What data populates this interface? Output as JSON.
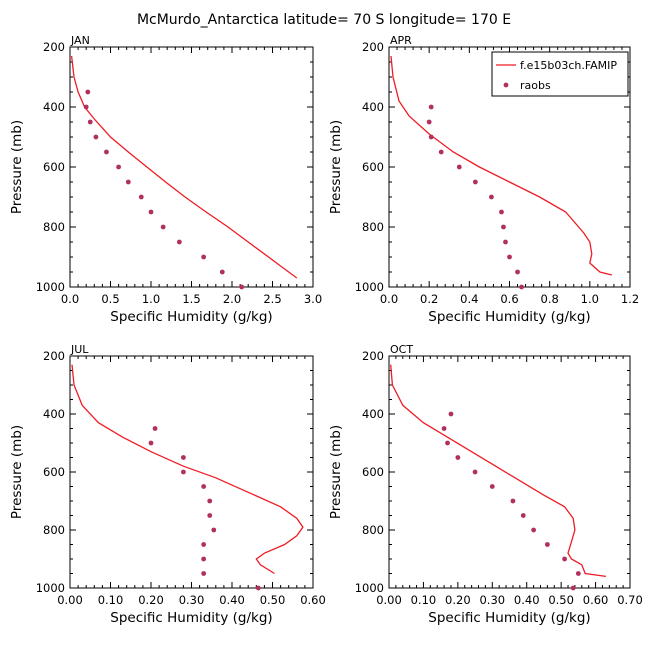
{
  "title": "McMurdo_Antarctica  latitude= 70 S longitude= 170 E",
  "legend": {
    "entries": [
      "f.e15b03ch.FAMIP",
      "raobs"
    ],
    "colors": {
      "model": "#ee1c25",
      "obs": "#b03060"
    }
  },
  "chart_data": [
    {
      "type": "line",
      "panel": "JAN",
      "xlabel": "Specific Humidity (g/kg)",
      "ylabel": "Pressure (mb)",
      "xlim": [
        0,
        3
      ],
      "ylim": [
        200,
        1000
      ],
      "y_inverted": true,
      "xticks": [
        0,
        0.5,
        1,
        1.5,
        2,
        2.5,
        3
      ],
      "xtick_labels": [
        "0.0",
        "0.5",
        "1.0",
        "1.5",
        "2.0",
        "2.5",
        "3.0"
      ],
      "yticks": [
        200,
        400,
        600,
        800,
        1000
      ],
      "series": [
        {
          "name": "f.e15b03ch.FAMIP",
          "kind": "line",
          "points": [
            [
              0.02,
              230
            ],
            [
              0.05,
              300
            ],
            [
              0.1,
              350
            ],
            [
              0.18,
              400
            ],
            [
              0.3,
              440
            ],
            [
              0.5,
              500
            ],
            [
              0.72,
              550
            ],
            [
              0.95,
              600
            ],
            [
              1.18,
              650
            ],
            [
              1.42,
              700
            ],
            [
              1.68,
              750
            ],
            [
              1.95,
              800
            ],
            [
              2.2,
              850
            ],
            [
              2.45,
              900
            ],
            [
              2.65,
              940
            ],
            [
              2.8,
              970
            ]
          ]
        },
        {
          "name": "raobs",
          "kind": "scatter",
          "points": [
            [
              0.22,
              350
            ],
            [
              0.2,
              400
            ],
            [
              0.25,
              450
            ],
            [
              0.32,
              500
            ],
            [
              0.45,
              550
            ],
            [
              0.6,
              600
            ],
            [
              0.72,
              650
            ],
            [
              0.88,
              700
            ],
            [
              1.0,
              750
            ],
            [
              1.15,
              800
            ],
            [
              1.35,
              850
            ],
            [
              1.65,
              900
            ],
            [
              1.88,
              950
            ],
            [
              2.12,
              1000
            ]
          ]
        }
      ]
    },
    {
      "type": "line",
      "panel": "APR",
      "xlabel": "Specific Humidity (g/kg)",
      "ylabel": "Pressure (mb)",
      "xlim": [
        0,
        1.2
      ],
      "ylim": [
        200,
        1000
      ],
      "y_inverted": true,
      "xticks": [
        0,
        0.2,
        0.4,
        0.6,
        0.8,
        1.0,
        1.2
      ],
      "xtick_labels": [
        "0.0",
        "0.2",
        "0.4",
        "0.6",
        "0.8",
        "1.0",
        "1.2"
      ],
      "yticks": [
        200,
        400,
        600,
        800,
        1000
      ],
      "series": [
        {
          "name": "f.e15b03ch.FAMIP",
          "kind": "line",
          "points": [
            [
              0.01,
              230
            ],
            [
              0.02,
              300
            ],
            [
              0.05,
              380
            ],
            [
              0.1,
              430
            ],
            [
              0.2,
              490
            ],
            [
              0.32,
              550
            ],
            [
              0.45,
              600
            ],
            [
              0.6,
              650
            ],
            [
              0.75,
              700
            ],
            [
              0.88,
              750
            ],
            [
              0.97,
              820
            ],
            [
              1.0,
              850
            ],
            [
              1.01,
              890
            ],
            [
              1.0,
              920
            ],
            [
              1.05,
              950
            ],
            [
              1.11,
              960
            ]
          ]
        },
        {
          "name": "raobs",
          "kind": "scatter",
          "points": [
            [
              0.21,
              400
            ],
            [
              0.2,
              450
            ],
            [
              0.21,
              500
            ],
            [
              0.26,
              550
            ],
            [
              0.35,
              600
            ],
            [
              0.43,
              650
            ],
            [
              0.51,
              700
            ],
            [
              0.56,
              750
            ],
            [
              0.57,
              800
            ],
            [
              0.58,
              850
            ],
            [
              0.6,
              900
            ],
            [
              0.64,
              950
            ],
            [
              0.66,
              1000
            ]
          ]
        }
      ]
    },
    {
      "type": "line",
      "panel": "JUL",
      "xlabel": "Specific Humidity (g/kg)",
      "ylabel": "Pressure (mb)",
      "xlim": [
        0,
        0.6
      ],
      "ylim": [
        200,
        1000
      ],
      "y_inverted": true,
      "xticks": [
        0,
        0.1,
        0.2,
        0.3,
        0.4,
        0.5,
        0.6
      ],
      "xtick_labels": [
        "0.00",
        "0.10",
        "0.20",
        "0.30",
        "0.40",
        "0.50",
        "0.60"
      ],
      "yticks": [
        200,
        400,
        600,
        800,
        1000
      ],
      "series": [
        {
          "name": "f.e15b03ch.FAMIP",
          "kind": "line",
          "points": [
            [
              0.005,
              230
            ],
            [
              0.01,
              300
            ],
            [
              0.03,
              370
            ],
            [
              0.07,
              430
            ],
            [
              0.13,
              480
            ],
            [
              0.2,
              530
            ],
            [
              0.28,
              580
            ],
            [
              0.36,
              620
            ],
            [
              0.44,
              670
            ],
            [
              0.52,
              720
            ],
            [
              0.56,
              760
            ],
            [
              0.575,
              790
            ],
            [
              0.56,
              820
            ],
            [
              0.53,
              850
            ],
            [
              0.48,
              880
            ],
            [
              0.46,
              900
            ],
            [
              0.47,
              920
            ],
            [
              0.505,
              950
            ]
          ]
        },
        {
          "name": "raobs",
          "kind": "scatter",
          "points": [
            [
              0.21,
              450
            ],
            [
              0.2,
              500
            ],
            [
              0.28,
              550
            ],
            [
              0.28,
              600
            ],
            [
              0.33,
              650
            ],
            [
              0.345,
              700
            ],
            [
              0.345,
              750
            ],
            [
              0.355,
              800
            ],
            [
              0.33,
              850
            ],
            [
              0.33,
              900
            ],
            [
              0.33,
              950
            ],
            [
              0.465,
              1000
            ]
          ]
        }
      ]
    },
    {
      "type": "line",
      "panel": "OCT",
      "xlabel": "Specific Humidity (g/kg)",
      "ylabel": "Pressure (mb)",
      "xlim": [
        0,
        0.7
      ],
      "ylim": [
        200,
        1000
      ],
      "y_inverted": true,
      "xticks": [
        0,
        0.1,
        0.2,
        0.3,
        0.4,
        0.5,
        0.6,
        0.7
      ],
      "xtick_labels": [
        "0.00",
        "0.10",
        "0.20",
        "0.30",
        "0.40",
        "0.50",
        "0.60",
        "0.70"
      ],
      "yticks": [
        200,
        400,
        600,
        800,
        1000
      ],
      "series": [
        {
          "name": "f.e15b03ch.FAMIP",
          "kind": "line",
          "points": [
            [
              0.005,
              230
            ],
            [
              0.01,
              300
            ],
            [
              0.04,
              370
            ],
            [
              0.1,
              430
            ],
            [
              0.17,
              480
            ],
            [
              0.24,
              530
            ],
            [
              0.31,
              580
            ],
            [
              0.38,
              630
            ],
            [
              0.45,
              680
            ],
            [
              0.51,
              720
            ],
            [
              0.535,
              760
            ],
            [
              0.54,
              800
            ],
            [
              0.53,
              840
            ],
            [
              0.52,
              880
            ],
            [
              0.53,
              900
            ],
            [
              0.56,
              920
            ],
            [
              0.57,
              950
            ],
            [
              0.63,
              960
            ]
          ]
        },
        {
          "name": "raobs",
          "kind": "scatter",
          "points": [
            [
              0.18,
              400
            ],
            [
              0.16,
              450
            ],
            [
              0.17,
              500
            ],
            [
              0.2,
              550
            ],
            [
              0.25,
              600
            ],
            [
              0.3,
              650
            ],
            [
              0.36,
              700
            ],
            [
              0.39,
              750
            ],
            [
              0.42,
              800
            ],
            [
              0.46,
              850
            ],
            [
              0.51,
              900
            ],
            [
              0.55,
              950
            ],
            [
              0.535,
              1000
            ]
          ]
        }
      ]
    }
  ]
}
